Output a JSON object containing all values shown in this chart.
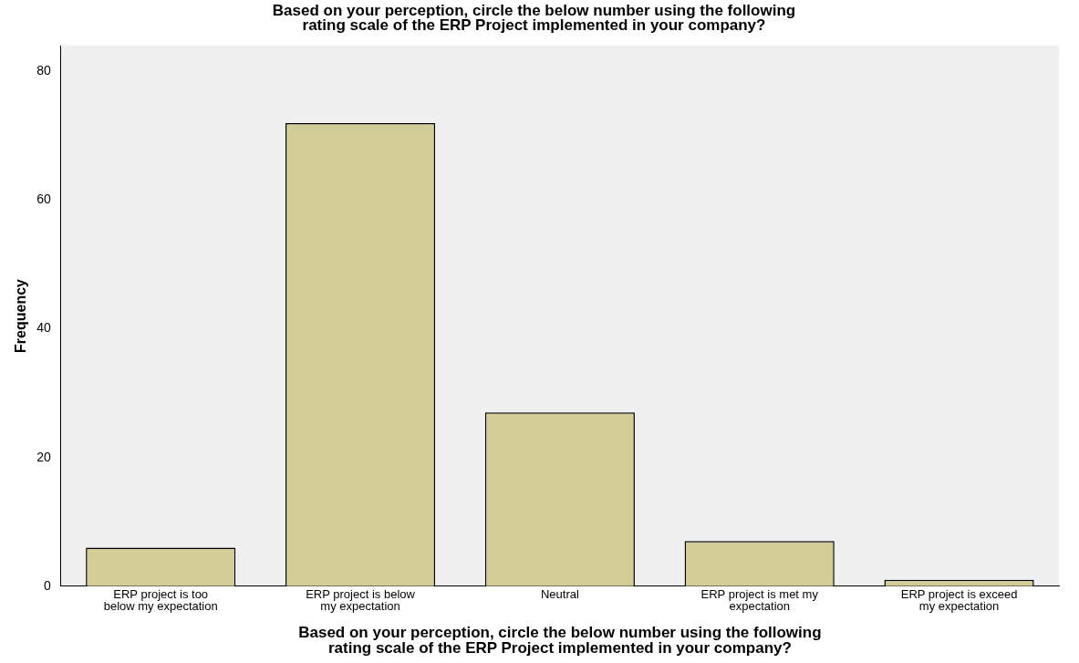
{
  "chart_data": {
    "type": "bar",
    "title": "Based on your perception, circle the below number using the following rating scale of the ERP Project implemented in your company?",
    "xlabel": "Based on your perception, circle the below number using the following rating scale of the ERP Project implemented in your company?",
    "ylabel": "Frequency",
    "categories": [
      "ERP project is too below my expectation",
      "ERP project is below my expectation",
      "Neutral",
      "ERP project is met my expectation",
      "ERP project is exceed my expectation"
    ],
    "values": [
      6,
      72,
      27,
      7,
      1
    ],
    "color": "#d3ce97",
    "ylim": [
      0,
      84
    ],
    "yticks": [
      0,
      20,
      40,
      60,
      80
    ],
    "grid": false
  }
}
